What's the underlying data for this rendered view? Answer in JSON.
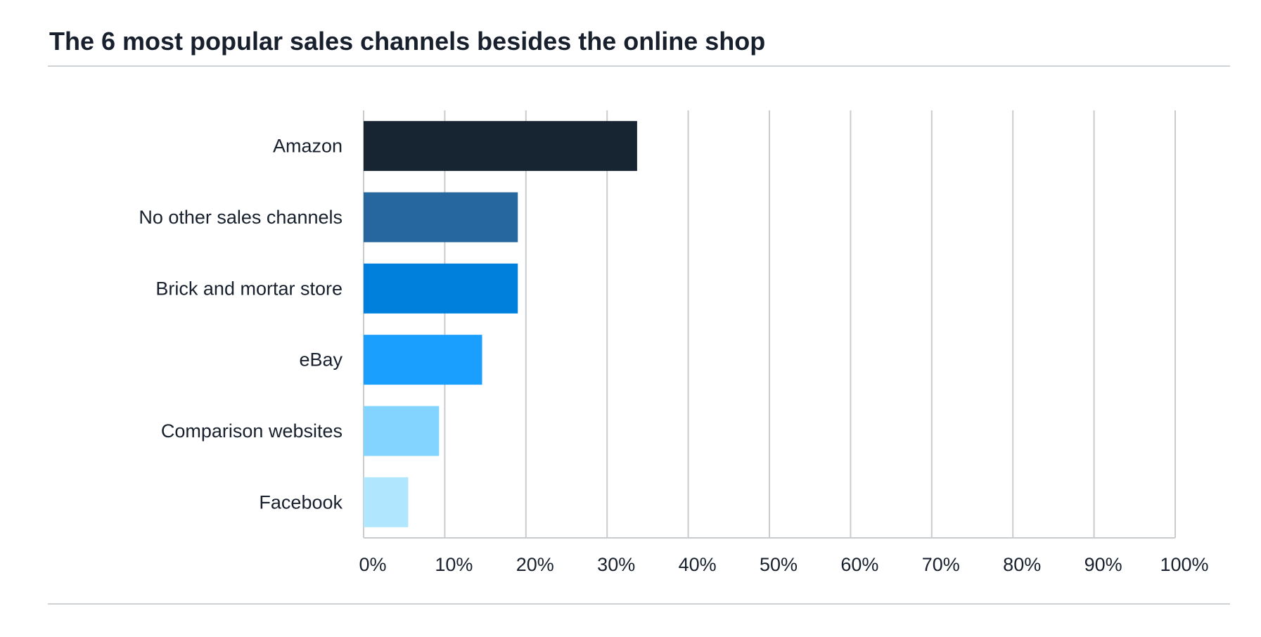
{
  "chart_data": {
    "type": "bar",
    "orientation": "horizontal",
    "title": "The 6 most popular sales channels besides the online shop",
    "categories": [
      "Amazon",
      "No other sales channels",
      "Brick and mortar store",
      "eBay",
      "Comparison websites",
      "Facebook"
    ],
    "values": [
      33.7,
      19.0,
      19.0,
      14.6,
      9.3,
      5.5
    ],
    "bar_colors": [
      "#172533",
      "#2767a0",
      "#0080dd",
      "#1a9ffe",
      "#83d4fe",
      "#b1e7fe"
    ],
    "xlim": [
      0,
      100
    ],
    "x_ticks": [
      0,
      10,
      20,
      30,
      40,
      50,
      60,
      70,
      80,
      90,
      100
    ],
    "x_tick_labels": [
      "0%",
      "10%",
      "20%",
      "30%",
      "40%",
      "50%",
      "60%",
      "70%",
      "80%",
      "90%",
      "100%"
    ],
    "xlabel": "",
    "ylabel": "",
    "grid": true,
    "legend": "none"
  }
}
